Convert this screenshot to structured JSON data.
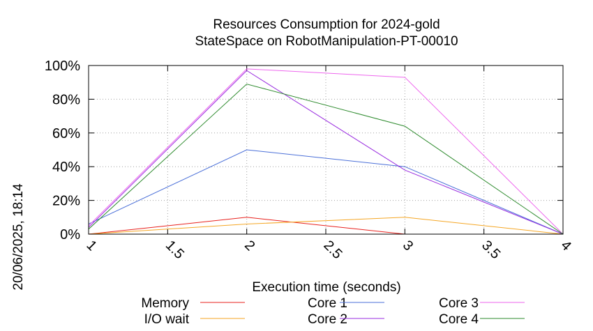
{
  "timestamp": "20/06/2025, 18:14",
  "chart_data": {
    "type": "line",
    "title": "Resources Consumption for 2024-gold",
    "subtitle": "StateSpace on RobotManipulation-PT-00010",
    "xlabel": "Execution time (seconds)",
    "ylabel": "",
    "xlim": [
      1,
      4
    ],
    "ylim": [
      0,
      100
    ],
    "x_ticks": [
      1,
      1.5,
      2,
      2.5,
      3,
      3.5,
      4
    ],
    "x_tick_labels": [
      "1",
      "1.5",
      "2",
      "2.5",
      "3",
      "3.5",
      "4"
    ],
    "y_ticks": [
      0,
      20,
      40,
      60,
      80,
      100
    ],
    "y_tick_labels": [
      "0%",
      "20%",
      "40%",
      "60%",
      "80%",
      "100%"
    ],
    "grid": true,
    "legend_position": "bottom",
    "x": [
      1,
      2,
      3,
      4
    ],
    "series": [
      {
        "name": "Memory",
        "color": "#e8201c",
        "values": [
          0,
          10,
          0,
          0
        ]
      },
      {
        "name": "I/O wait",
        "color": "#f5a623",
        "values": [
          0,
          6,
          10,
          0
        ]
      },
      {
        "name": "Core 1",
        "color": "#4a6fd8",
        "values": [
          6,
          50,
          40,
          0
        ]
      },
      {
        "name": "Core 2",
        "color": "#9a2ee0",
        "values": [
          4,
          97,
          38,
          0
        ]
      },
      {
        "name": "Core 3",
        "color": "#ee66ee",
        "values": [
          5,
          98,
          93,
          0
        ]
      },
      {
        "name": "Core 4",
        "color": "#2e8b2e",
        "values": [
          3,
          89,
          64,
          0
        ]
      }
    ]
  }
}
